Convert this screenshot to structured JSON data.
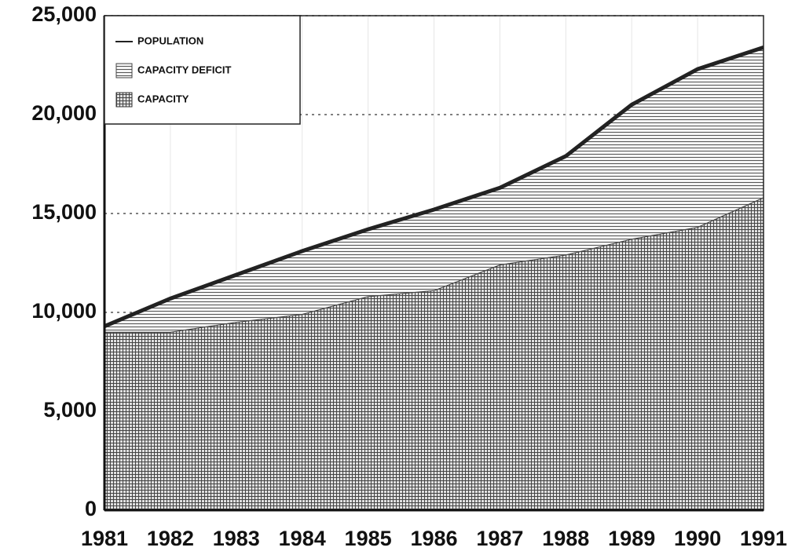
{
  "chart_data": {
    "type": "area",
    "stacked": true,
    "categories": [
      "1981",
      "1982",
      "1983",
      "1984",
      "1985",
      "1986",
      "1987",
      "1988",
      "1989",
      "1990",
      "1991"
    ],
    "series": [
      {
        "name": "POPULATION",
        "type": "line",
        "color": "#222222",
        "values": [
          9300,
          10700,
          11900,
          13100,
          14200,
          15200,
          16300,
          17900,
          20500,
          22300,
          23400
        ]
      },
      {
        "name": "CAPACITY DEFICIT",
        "type": "area",
        "pattern": "horizontal",
        "color": "#444444",
        "values": [
          300,
          1700,
          2400,
          3200,
          3400,
          4100,
          3900,
          5000,
          6800,
          8000,
          7600
        ]
      },
      {
        "name": "CAPACITY",
        "type": "area",
        "pattern": "grid",
        "color": "#333333",
        "values": [
          9000,
          9000,
          9500,
          9900,
          10800,
          11100,
          12400,
          12900,
          13700,
          14300,
          15800
        ]
      }
    ],
    "ylim": [
      0,
      25000
    ],
    "yticks": [
      0,
      {
        "value": 5000,
        "label": "5,000"
      },
      {
        "value": 10000,
        "label": "10,000"
      },
      {
        "value": 15000,
        "label": "15,000"
      },
      {
        "value": 20000,
        "label": "20,000"
      },
      {
        "value": 25000,
        "label": "25,000"
      }
    ],
    "grid": true,
    "legend": "top-left"
  }
}
